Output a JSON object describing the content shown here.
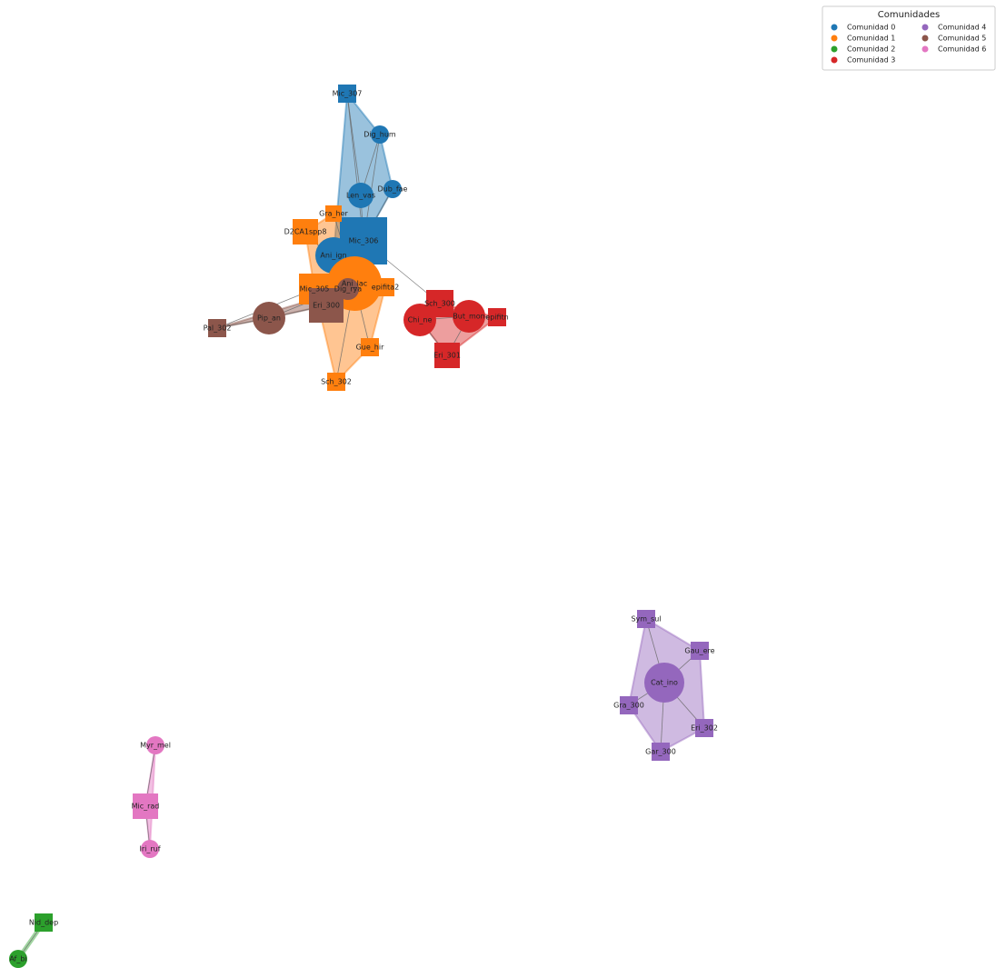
{
  "legend": {
    "title": "Comunidades",
    "items": [
      "Comunidad 0",
      "Comunidad 1",
      "Comunidad 2",
      "Comunidad 3",
      "Comunidad 4",
      "Comunidad 5",
      "Comunidad 6"
    ]
  },
  "nodes": [
    {
      "label": "Mic_307",
      "community": 0
    },
    {
      "label": "Dig_hum",
      "community": 0
    },
    {
      "label": "Len_vas",
      "community": 0
    },
    {
      "label": "Dub_fae",
      "community": 0
    },
    {
      "label": "Mic_306",
      "community": 0
    },
    {
      "label": "Ani_ign",
      "community": 0
    },
    {
      "label": "Gra_her",
      "community": 1
    },
    {
      "label": "D2CA1spp8",
      "community": 1
    },
    {
      "label": "Mic_305",
      "community": 1
    },
    {
      "label": "Ani_lac",
      "community": 1
    },
    {
      "label": "epifita2",
      "community": 1
    },
    {
      "label": "Gue_hir",
      "community": 1
    },
    {
      "label": "Sch_302",
      "community": 1
    },
    {
      "label": "Dig_rya",
      "community": 5
    },
    {
      "label": "Eri_300",
      "community": 5
    },
    {
      "label": "Pip_an",
      "community": 5
    },
    {
      "label": "Pal_302",
      "community": 5
    },
    {
      "label": "Sch_300",
      "community": 3
    },
    {
      "label": "Chi_ne",
      "community": 3
    },
    {
      "label": "But_mon",
      "community": 3
    },
    {
      "label": "epifitn",
      "community": 3
    },
    {
      "label": "Eri_301",
      "community": 3
    },
    {
      "label": "Sym_sul",
      "community": 4
    },
    {
      "label": "Gau_ere",
      "community": 4
    },
    {
      "label": "Cat_ino",
      "community": 4
    },
    {
      "label": "Gra_300",
      "community": 4
    },
    {
      "label": "Eri_302",
      "community": 4
    },
    {
      "label": "Gar_300",
      "community": 4
    },
    {
      "label": "Myr_mel",
      "community": 6
    },
    {
      "label": "Mic_rad",
      "community": 6
    },
    {
      "label": "Iri_ruf",
      "community": 6
    },
    {
      "label": "Nid_dep",
      "community": 2
    },
    {
      "label": "Af_bi",
      "community": 2
    }
  ]
}
